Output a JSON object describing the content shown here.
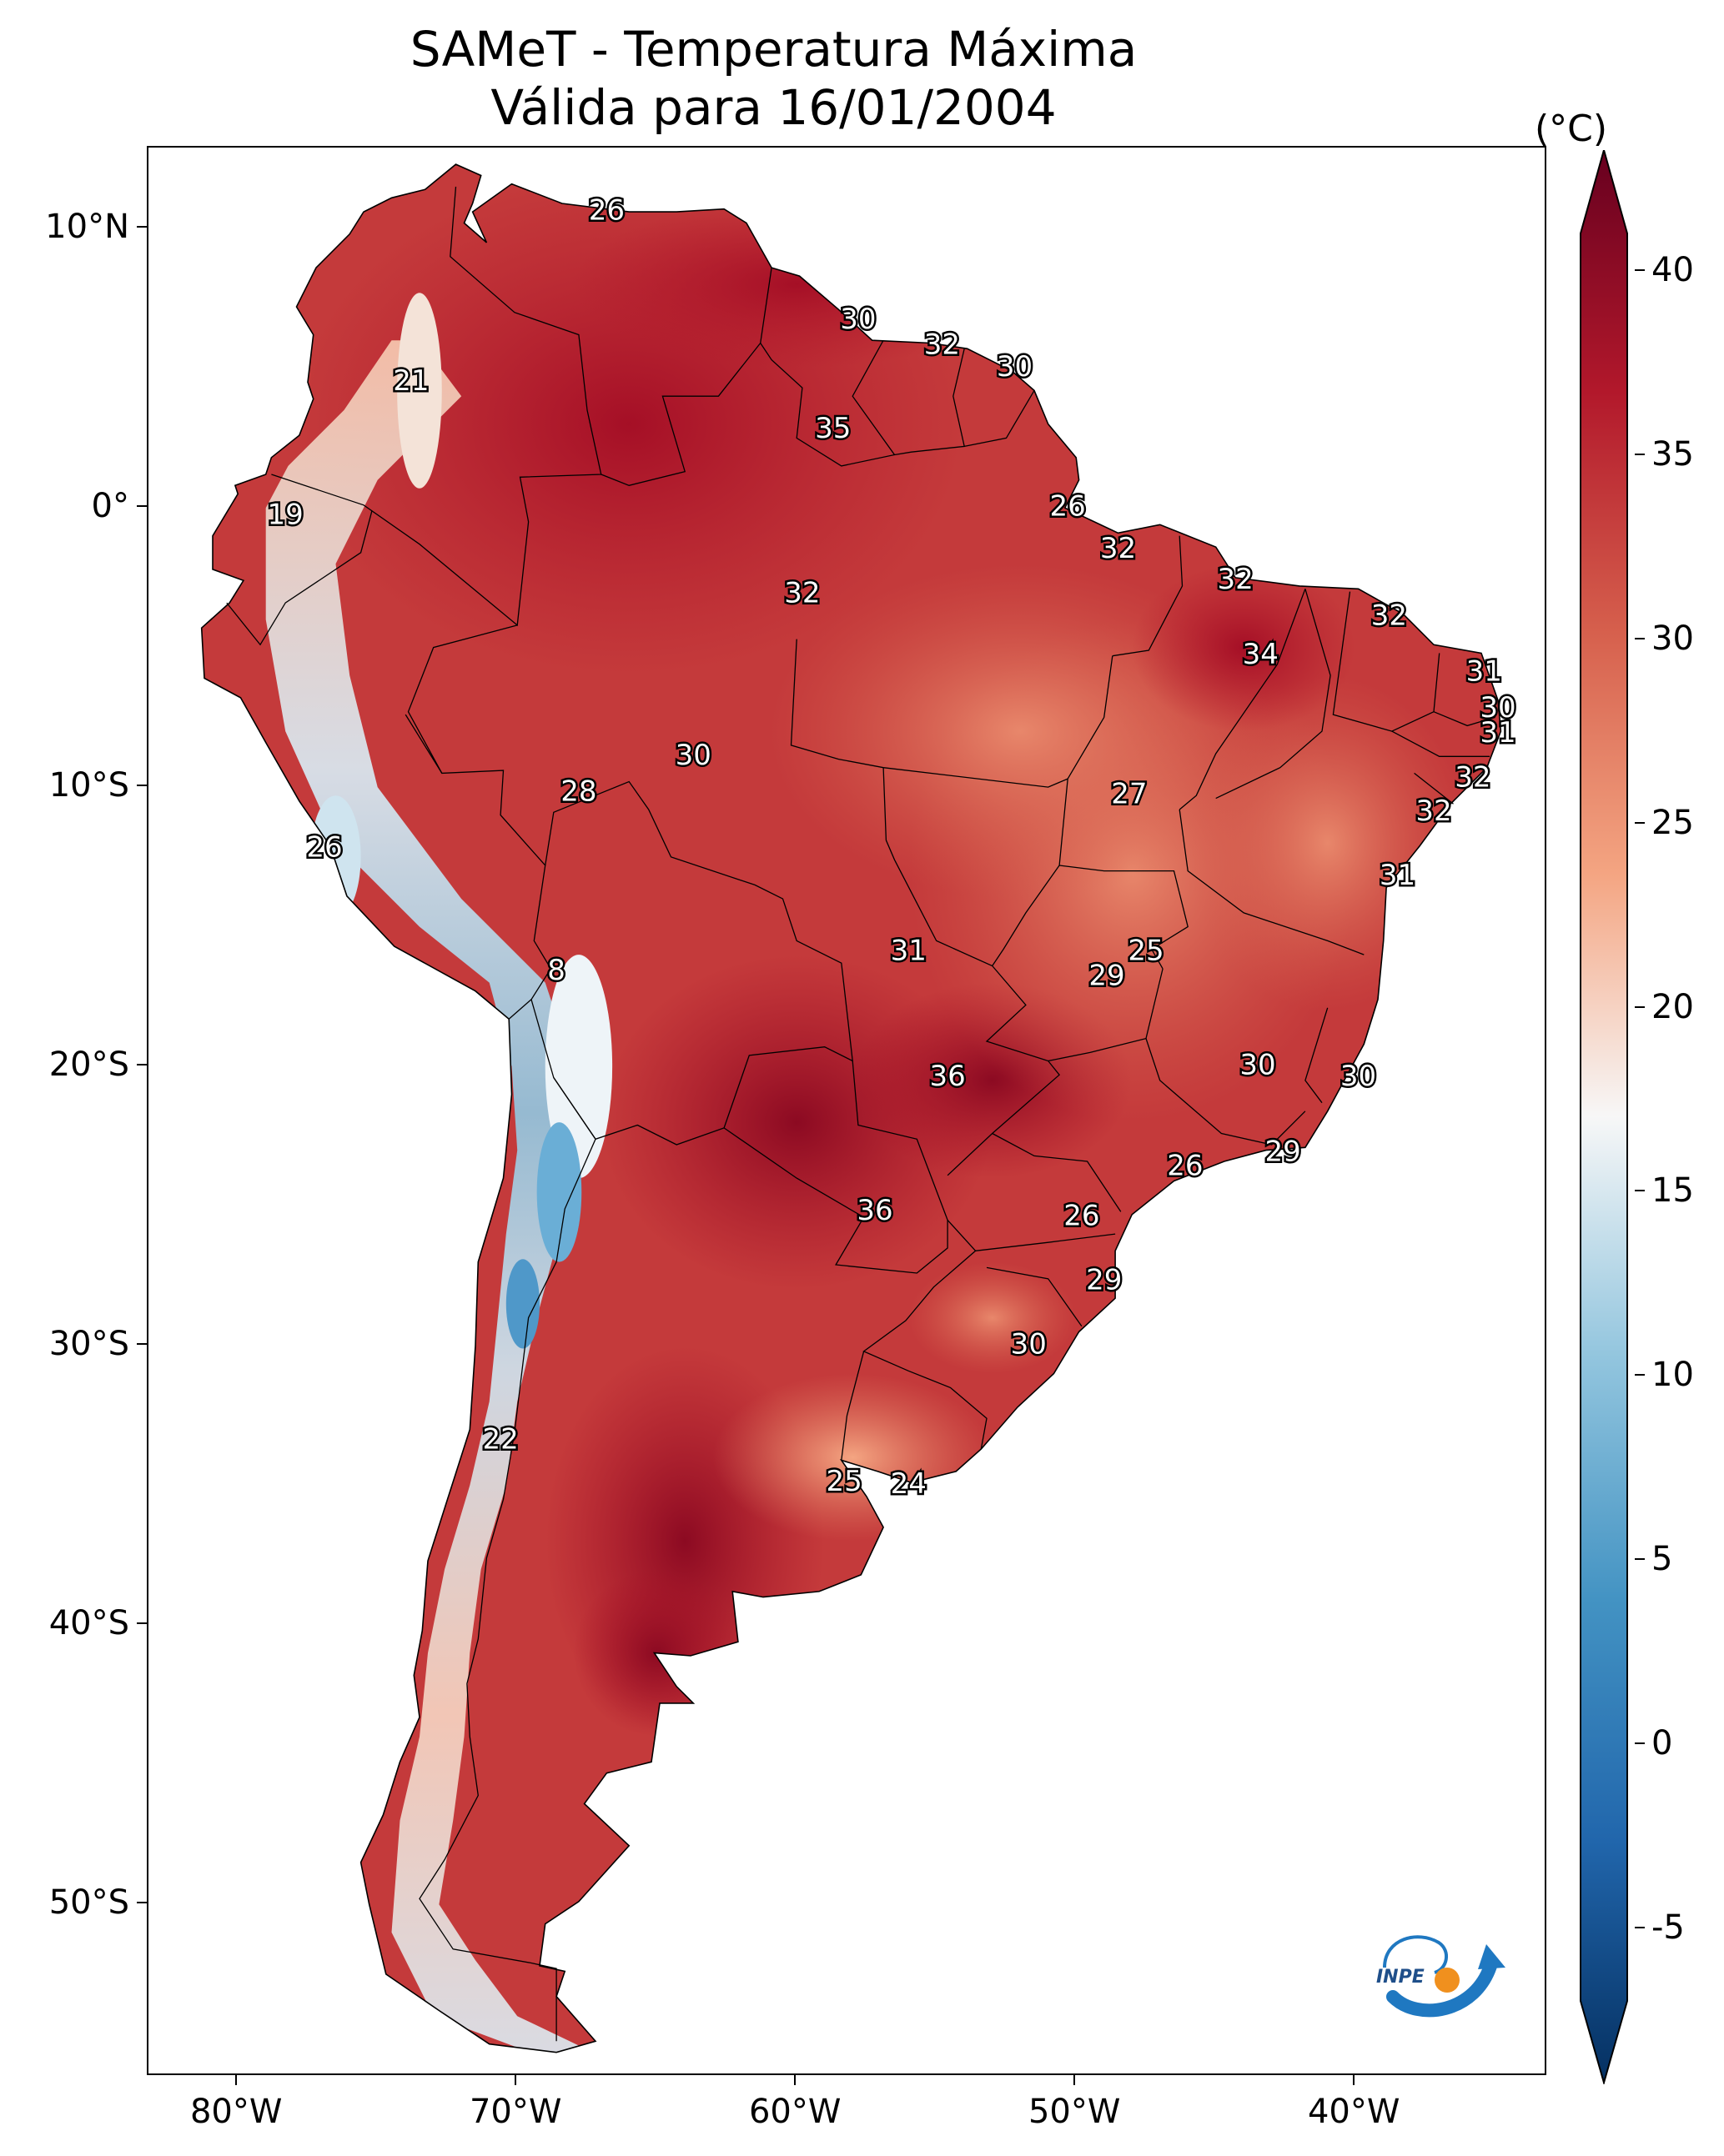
{
  "title": "SAMeT - Temperatura Máxima",
  "subtitle": "Válida para 16/01/2004",
  "unit": "(°C)",
  "map": {
    "region": "South America",
    "lon_range": [
      -83,
      -33
    ],
    "lat_range": [
      -56,
      13
    ],
    "lat_ticks": [
      "10°N",
      "0°",
      "10°S",
      "20°S",
      "30°S",
      "40°S",
      "50°S"
    ],
    "lon_ticks": [
      "80°W",
      "70°W",
      "60°W",
      "50°W",
      "40°W"
    ],
    "colormap": "RdBu_r",
    "contour_labels": [
      {
        "text": "26",
        "lon": -66.8,
        "lat": 10.6
      },
      {
        "text": "21",
        "lon": -73.8,
        "lat": 4.5
      },
      {
        "text": "19",
        "lon": -78.3,
        "lat": -0.3
      },
      {
        "text": "30",
        "lon": -57.8,
        "lat": 6.7
      },
      {
        "text": "32",
        "lon": -54.8,
        "lat": 5.8
      },
      {
        "text": "30",
        "lon": -52.2,
        "lat": 5.0
      },
      {
        "text": "35",
        "lon": -58.7,
        "lat": 2.8
      },
      {
        "text": "26",
        "lon": -50.3,
        "lat": 0.0
      },
      {
        "text": "32",
        "lon": -48.5,
        "lat": -1.5
      },
      {
        "text": "32",
        "lon": -59.8,
        "lat": -3.1
      },
      {
        "text": "32",
        "lon": -44.3,
        "lat": -2.6
      },
      {
        "text": "34",
        "lon": -43.4,
        "lat": -5.3
      },
      {
        "text": "32",
        "lon": -38.8,
        "lat": -3.9
      },
      {
        "text": "31",
        "lon": -35.4,
        "lat": -5.9
      },
      {
        "text": "30",
        "lon": -34.9,
        "lat": -7.2
      },
      {
        "text": "31",
        "lon": -34.9,
        "lat": -8.1
      },
      {
        "text": "32",
        "lon": -35.8,
        "lat": -9.7
      },
      {
        "text": "32",
        "lon": -37.2,
        "lat": -10.9
      },
      {
        "text": "30",
        "lon": -63.7,
        "lat": -8.9
      },
      {
        "text": "28",
        "lon": -67.8,
        "lat": -10.2
      },
      {
        "text": "27",
        "lon": -48.1,
        "lat": -10.3
      },
      {
        "text": "26",
        "lon": -76.9,
        "lat": -12.2
      },
      {
        "text": "31",
        "lon": -38.5,
        "lat": -13.2
      },
      {
        "text": "31",
        "lon": -56.0,
        "lat": -15.9
      },
      {
        "text": "25",
        "lon": -47.5,
        "lat": -15.9
      },
      {
        "text": "29",
        "lon": -48.9,
        "lat": -16.8
      },
      {
        "text": "8",
        "lon": -68.6,
        "lat": -16.6
      },
      {
        "text": "30",
        "lon": -43.5,
        "lat": -20.0
      },
      {
        "text": "36",
        "lon": -54.6,
        "lat": -20.4
      },
      {
        "text": "30",
        "lon": -39.9,
        "lat": -20.4
      },
      {
        "text": "29",
        "lon": -42.6,
        "lat": -23.1
      },
      {
        "text": "26",
        "lon": -46.1,
        "lat": -23.6
      },
      {
        "text": "36",
        "lon": -57.2,
        "lat": -25.2
      },
      {
        "text": "26",
        "lon": -49.8,
        "lat": -25.4
      },
      {
        "text": "29",
        "lon": -49.0,
        "lat": -27.7
      },
      {
        "text": "30",
        "lon": -51.7,
        "lat": -30.0
      },
      {
        "text": "22",
        "lon": -70.6,
        "lat": -33.4
      },
      {
        "text": "25",
        "lon": -58.3,
        "lat": -34.9
      },
      {
        "text": "24",
        "lon": -56.0,
        "lat": -35.0
      }
    ]
  },
  "colorbar": {
    "min": -7,
    "max": 41,
    "ticks": [
      "40",
      "35",
      "30",
      "25",
      "20",
      "15",
      "10",
      "5",
      "0",
      "-5"
    ],
    "tick_values": [
      40,
      35,
      30,
      25,
      20,
      15,
      10,
      5,
      0,
      -5
    ],
    "extend": "both"
  },
  "logo": {
    "text": "INPE",
    "icon": "inpe-logo-icon"
  },
  "colors": {
    "hot": "#67001f",
    "warm": "#d6604d",
    "mild": "#f4a582",
    "neutral": "#f7f7f7",
    "cool": "#92c5de",
    "cold": "#2166ac",
    "coldest": "#053061",
    "logo_blue": "#1f78c1",
    "logo_orange": "#f0901e"
  }
}
